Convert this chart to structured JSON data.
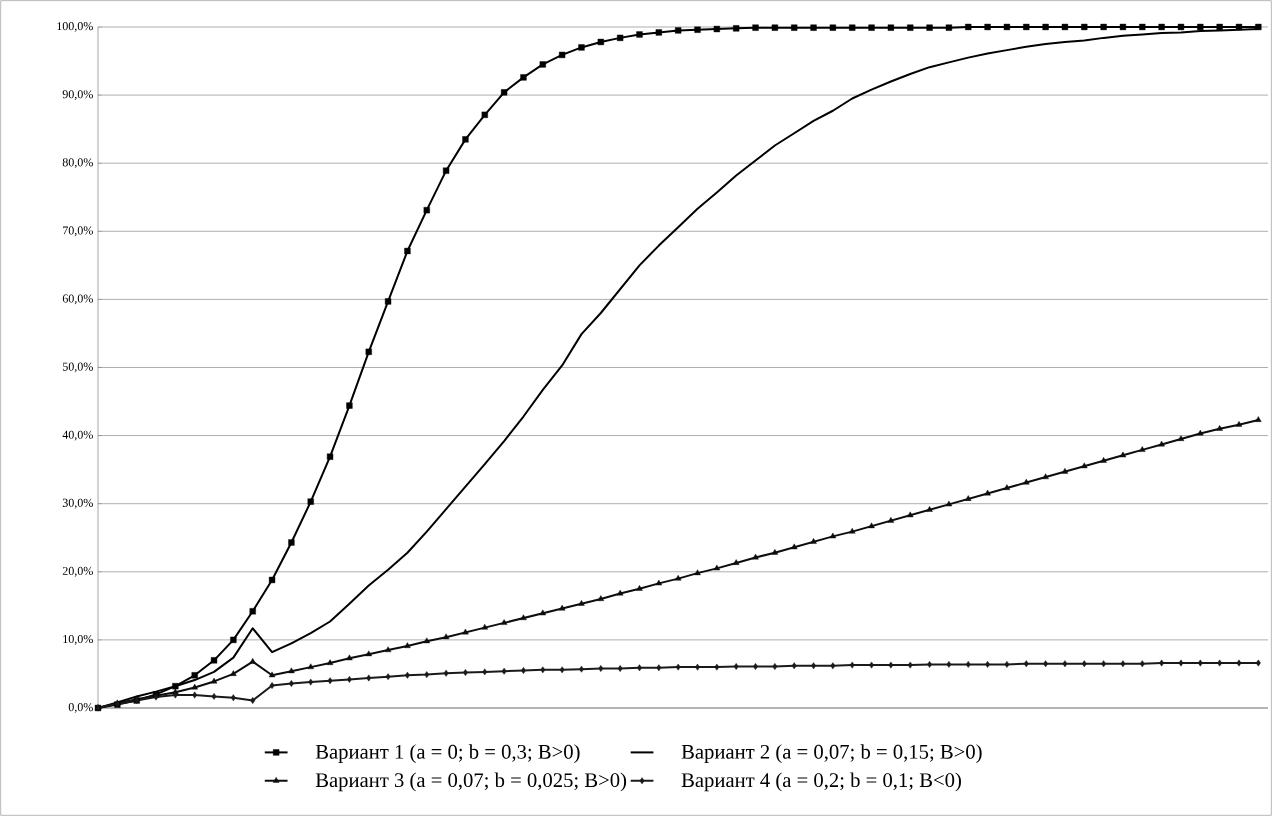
{
  "chart_data": {
    "type": "line",
    "categories": [
      null,
      null,
      null,
      null,
      null,
      null,
      null,
      null,
      null,
      null,
      null,
      null,
      null,
      null,
      null,
      null,
      null,
      null,
      null,
      null,
      null,
      null,
      null,
      null,
      null,
      null,
      null,
      null,
      null,
      null,
      null,
      null,
      null,
      null,
      null,
      null,
      null,
      null,
      null,
      null,
      null,
      null,
      null,
      null,
      null,
      null,
      null,
      null,
      null,
      null,
      null,
      null,
      null,
      null,
      null,
      null,
      null,
      null,
      null,
      null,
      null
    ],
    "series": [
      {
        "name": "Вариант 1 (a = 0; b = 0,3; B>0)",
        "color": "#000000",
        "marker": "square",
        "values": [
          0,
          0.5,
          1.1,
          2.0,
          3.2,
          4.8,
          7.0,
          10.0,
          14.2,
          18.8,
          24.3,
          30.3,
          36.9,
          44.4,
          52.3,
          59.7,
          67.1,
          73.1,
          78.9,
          83.5,
          87.1,
          90.4,
          92.6,
          94.5,
          95.9,
          97.0,
          97.8,
          98.4,
          98.9,
          99.2,
          99.5,
          99.6,
          99.7,
          99.8,
          99.9,
          99.9,
          99.9,
          99.9,
          99.9,
          99.9,
          99.9,
          99.9,
          99.9,
          99.9,
          99.9,
          100,
          100,
          100,
          100,
          100,
          100,
          100,
          100,
          100,
          100,
          100,
          100,
          100,
          100,
          100,
          100
        ]
      },
      {
        "name": "Вариант 2 (a = 0,07; b = 0,15; B>0)",
        "color": "#000000",
        "marker": "none",
        "values": [
          0,
          0.8,
          1.7,
          2.4,
          3.2,
          4.1,
          5.3,
          7.4,
          11.7,
          8.2,
          9.5,
          11.0,
          12.7,
          15.3,
          18.0,
          20.3,
          22.8,
          25.9,
          29.2,
          32.5,
          35.8,
          39.2,
          42.8,
          46.7,
          50.3,
          54.9,
          58.0,
          61.5,
          65.0,
          67.9,
          70.6,
          73.3,
          75.7,
          78.2,
          80.4,
          82.6,
          84.4,
          86.2,
          87.7,
          89.5,
          90.8,
          92.0,
          93.1,
          94.1,
          94.8,
          95.5,
          96.1,
          96.6,
          97.1,
          97.5,
          97.8,
          98.0,
          98.4,
          98.7,
          98.9,
          99.1,
          99.2,
          99.4,
          99.5,
          99.6,
          99.7
        ]
      },
      {
        "name": "Вариант 3 (a = 0,07; b = 0,025; B>0)",
        "color": "#0d0d0d",
        "marker": "triangle",
        "values": [
          0,
          0.7,
          1.3,
          1.8,
          2.3,
          3.0,
          3.9,
          5.0,
          6.8,
          4.8,
          5.4,
          6.0,
          6.6,
          7.3,
          7.9,
          8.5,
          9.1,
          9.8,
          10.4,
          11.1,
          11.8,
          12.5,
          13.2,
          13.9,
          14.6,
          15.3,
          16.0,
          16.8,
          17.5,
          18.3,
          19.0,
          19.8,
          20.5,
          21.3,
          22.1,
          22.8,
          23.6,
          24.4,
          25.2,
          25.9,
          26.7,
          27.5,
          28.3,
          29.1,
          29.9,
          30.7,
          31.5,
          32.3,
          33.1,
          33.9,
          34.7,
          35.5,
          36.3,
          37.1,
          37.9,
          38.7,
          39.5,
          40.3,
          41.0,
          41.6,
          42.3
        ]
      },
      {
        "name": "Вариант 4 (a = 0,2; b = 0,1; B<0)",
        "color": "#1a1a1a",
        "marker": "diamond",
        "values": [
          0,
          0.6,
          1.1,
          1.6,
          1.9,
          1.9,
          1.7,
          1.5,
          1.1,
          3.3,
          3.6,
          3.8,
          4.0,
          4.2,
          4.4,
          4.6,
          4.8,
          4.9,
          5.1,
          5.2,
          5.3,
          5.4,
          5.5,
          5.6,
          5.6,
          5.7,
          5.8,
          5.8,
          5.9,
          5.9,
          6.0,
          6.0,
          6.0,
          6.1,
          6.1,
          6.1,
          6.2,
          6.2,
          6.2,
          6.3,
          6.3,
          6.3,
          6.3,
          6.4,
          6.4,
          6.4,
          6.4,
          6.4,
          6.5,
          6.5,
          6.5,
          6.5,
          6.5,
          6.5,
          6.5,
          6.6,
          6.6,
          6.6,
          6.6,
          6.6,
          6.6
        ]
      }
    ],
    "ylim": [
      0,
      100
    ],
    "yticks": [
      {
        "value": 0,
        "label": "0,0%"
      },
      {
        "value": 10,
        "label": "10,0%"
      },
      {
        "value": 20,
        "label": "20,0%"
      },
      {
        "value": 30,
        "label": "30,0%"
      },
      {
        "value": 40,
        "label": "40,0%"
      },
      {
        "value": 50,
        "label": "50,0%"
      },
      {
        "value": 60,
        "label": "60,0%"
      },
      {
        "value": 70,
        "label": "70,0%"
      },
      {
        "value": 80,
        "label": "80,0%"
      },
      {
        "value": 90,
        "label": "90,0%"
      },
      {
        "value": 100,
        "label": "100,0%"
      }
    ],
    "grid": "y",
    "legend": "bottom",
    "line_style": "solid"
  }
}
